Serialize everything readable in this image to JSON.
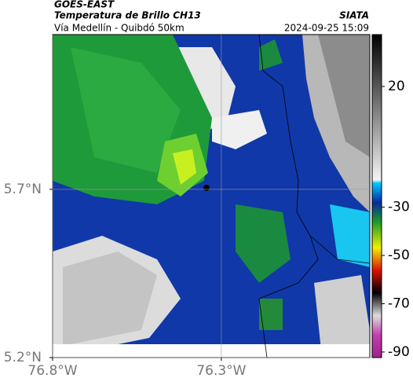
{
  "header": {
    "source": "GOES-EAST",
    "title": "Temperatura de Brillo CH13",
    "agency": "SIATA",
    "subtitle": "Vía Medellín - Quibdó 50km",
    "datetime": "2024-09-25 15:09"
  },
  "map": {
    "xlim": [
      -76.8,
      -75.86
    ],
    "ylim": [
      5.2,
      6.16
    ],
    "xticks": [
      {
        "value": -76.8,
        "label": "76.8°W"
      },
      {
        "value": -76.3,
        "label": "76.3°W"
      }
    ],
    "yticks": [
      {
        "value": 5.7,
        "label": "5.7°N"
      },
      {
        "value": 5.2,
        "label": "5.2°N"
      }
    ],
    "grid": true
  },
  "colorbar": {
    "clim": [
      -92.3,
      41.5
    ],
    "ticks": [
      20,
      -30,
      -50,
      -70,
      -90
    ]
  }
}
